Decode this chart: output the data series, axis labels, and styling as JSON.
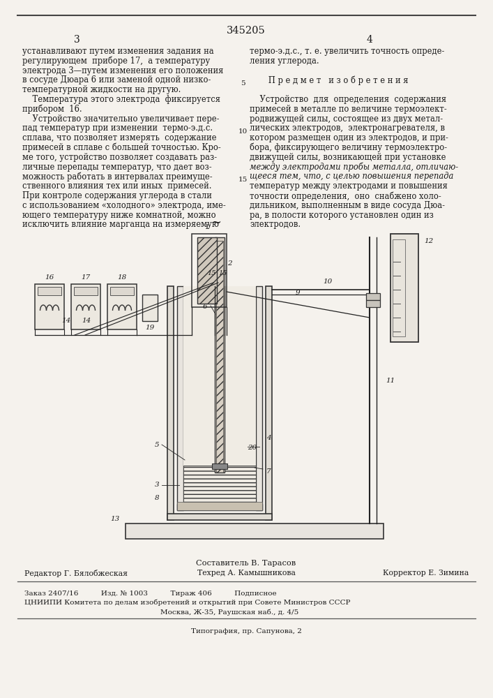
{
  "patent_number": "345205",
  "page_numbers": [
    "3",
    "4"
  ],
  "bg_color": "#f5f2ed",
  "text_color": "#1a1a1a",
  "left_column_text": [
    "устанавливают путем изменения задания на",
    "регулирующем  приборе 17,  а температуру",
    "электрода 3—путем изменения его положения",
    "в сосуде Дюара 6 или заменой одной низко-",
    "температурной жидкости на другую.",
    "    Температура этого электрода  фиксируется",
    "прибором  16.",
    "    Устройство значительно увеличивает пере-",
    "пад температур при изменении  термо-э.д.с.",
    "сплава, что позволяет измерять  содержание",
    "примесей в сплаве с большей точностью. Кро-",
    "ме того, устройство позволяет создавать раз-",
    "личные перепады температур, что дает воз-",
    "можность работать в интервалах преимуще-",
    "ственного влияния тех или иных  примесей.",
    "При контроле содержания углерода в стали",
    "с использованием «холодного» электрода, име-",
    "ющего температуру ниже комнатной, можно",
    "исключить влияние марганца на измеряемую"
  ],
  "right_column_text": [
    "термо-э.д.с., т. е. увеличить точность опреде-",
    "ления углерода.",
    "",
    "      П р е д м е т   и з о б р е т е н и я",
    "",
    "    Устройство  для  определения  содержания",
    "примесей в металле по величине термоэлект-",
    "родвижущей силы, состоящее из двух метал-",
    "лических электродов,  электронагревателя, в",
    "котором размещен один из электродов, и при-",
    "бора, фиксирующего величину термоэлектро-",
    "движущей силы, возникающей при установке",
    "между электродами пробы металла, отличаю-",
    "щееся тем, что, с целью повышения перепада",
    "температур между электродами и повышения",
    "точности определения,  оно  снабжено холо-",
    "дильником, выполненным в виде сосуда Дюа-",
    "ра, в полости которого установлен один из",
    "электродов."
  ],
  "footer_composer": "Составитель В. Тарасов",
  "footer_left": "Редактор Г. Бялобжеская",
  "footer_mid": "Техред А. Камышникова",
  "footer_right": "Корректор Е. Зимина",
  "footer_line2": "Заказ 2407/16          Изд. № 1003          Тираж 406          Подписное",
  "footer_line3": "ЦНИИПИ Комитета по делам изобретений и открытий при Совете Министров СССР",
  "footer_line4": "Москва, Ж-35, Раушская наб., д. 4/5",
  "footer_line5": "Типография, пр. Сапунова, 2"
}
